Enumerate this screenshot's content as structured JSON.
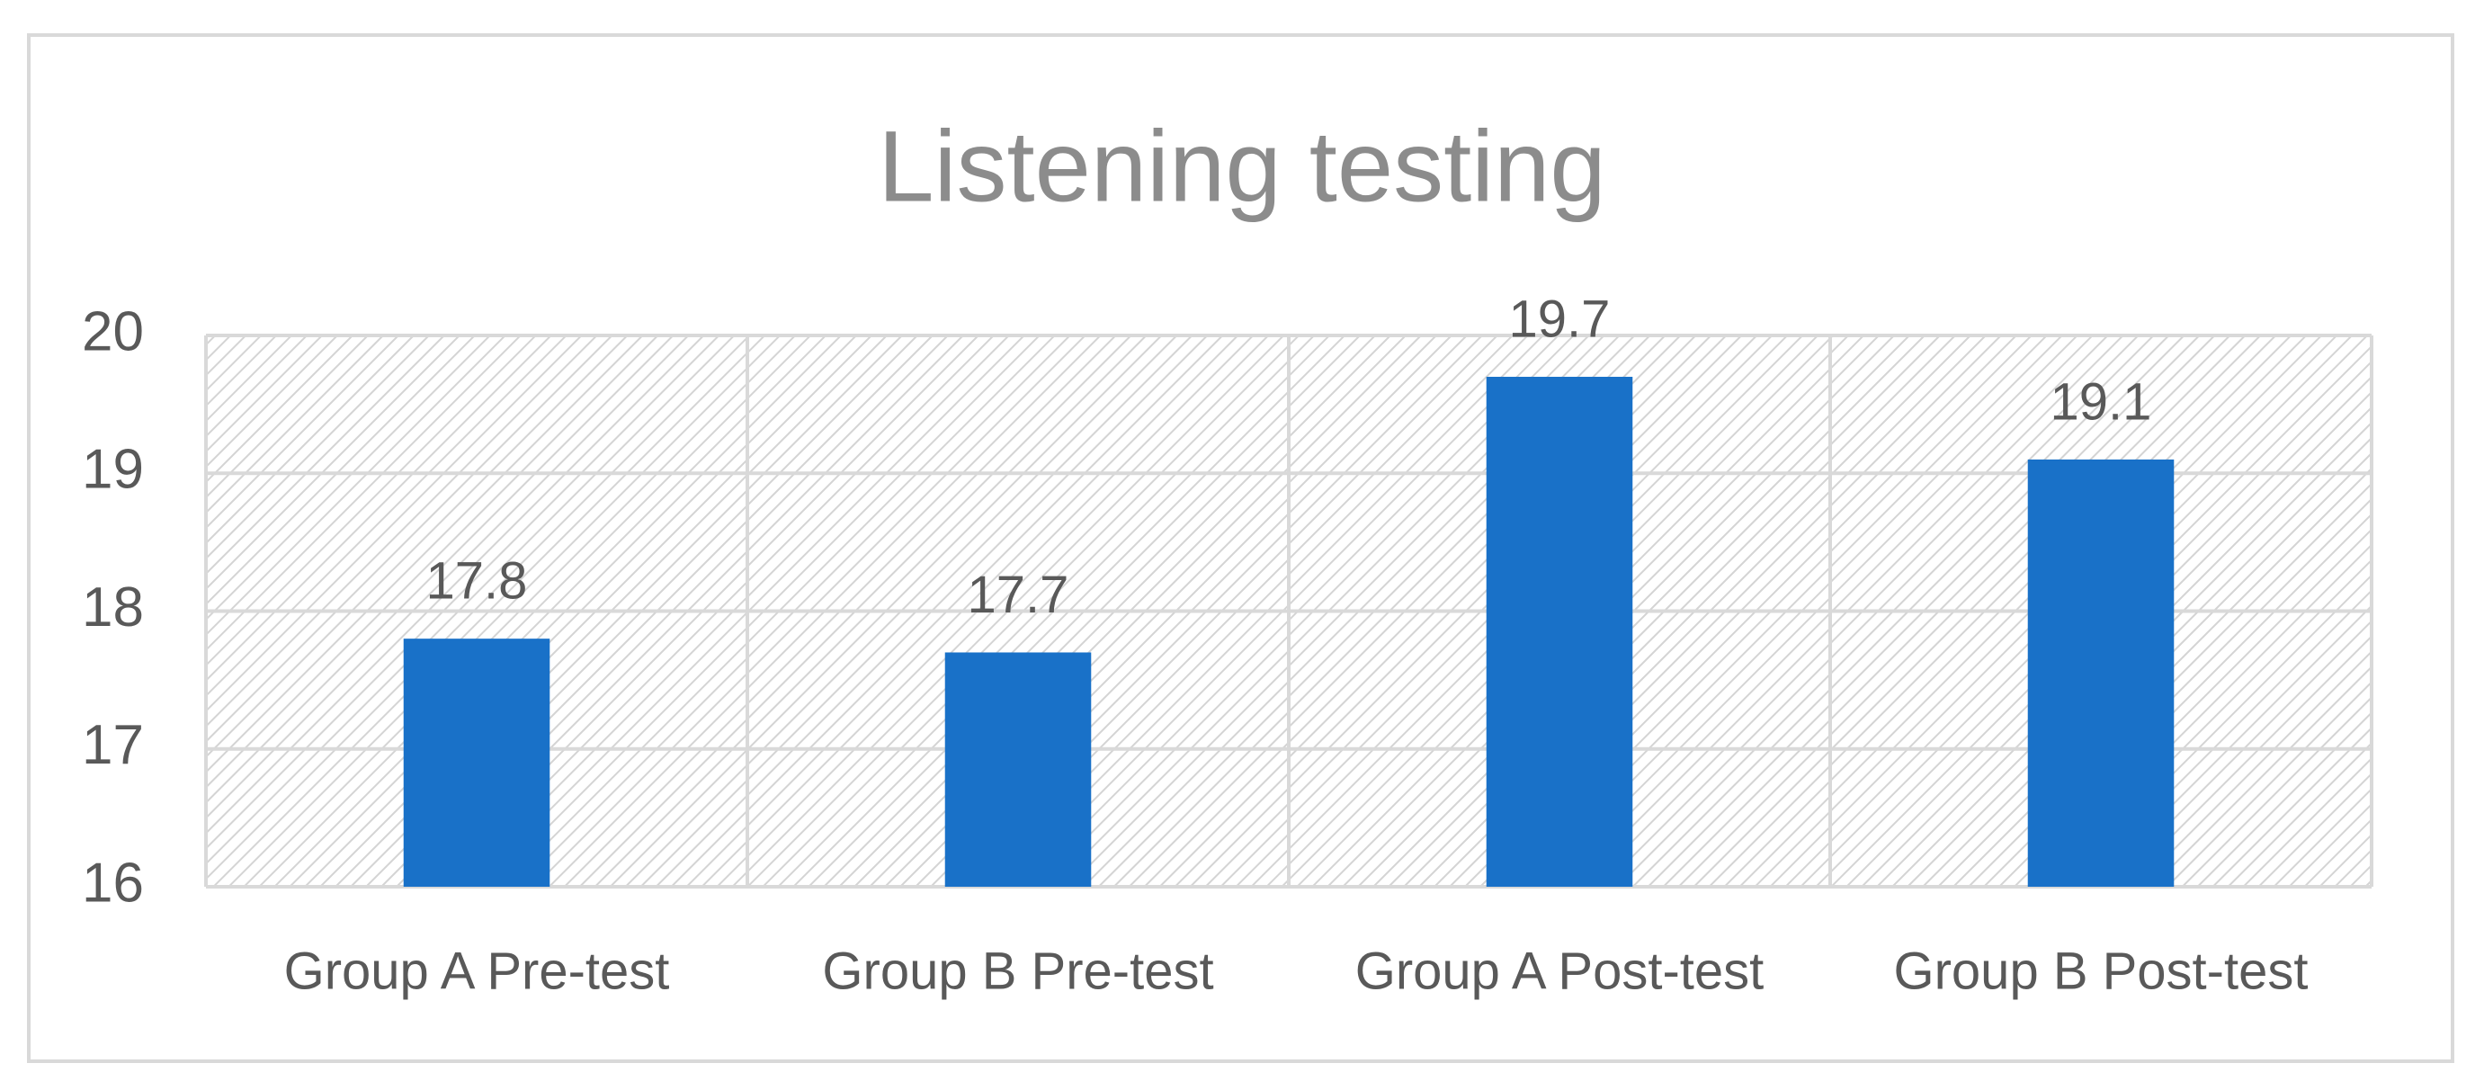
{
  "chart_data": {
    "type": "bar",
    "title": "Listening testing",
    "categories": [
      "Group A Pre-test",
      "Group B Pre-test",
      "Group A Post-test",
      "Group B Post-test"
    ],
    "values": [
      17.8,
      17.7,
      19.7,
      19.1
    ],
    "color": "#1971c8",
    "ylim": [
      16,
      20
    ],
    "yticks": [
      16,
      17,
      18,
      19,
      20
    ],
    "grid": true
  }
}
